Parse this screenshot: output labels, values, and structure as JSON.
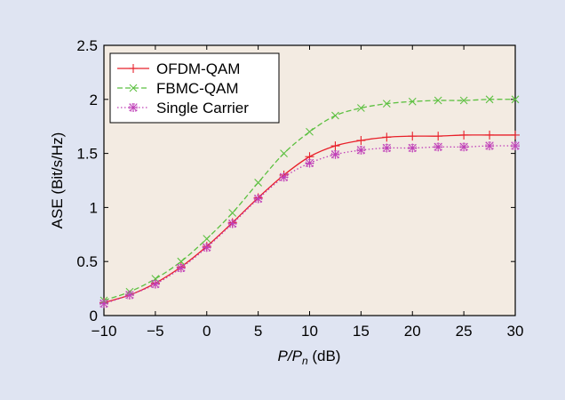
{
  "chart_data": {
    "type": "line",
    "xlabel_italic": "P/P",
    "xlabel_sub": "n",
    "xlabel_unit": " (dB)",
    "ylabel": "ASE (Bit/s/Hz)",
    "xlim": [
      -10,
      30
    ],
    "ylim": [
      0,
      2.5
    ],
    "xticks": [
      -10,
      -5,
      0,
      5,
      10,
      15,
      20,
      25,
      30
    ],
    "xtick_labels": [
      "−10",
      "−5",
      "0",
      "5",
      "10",
      "15",
      "20",
      "25",
      "30"
    ],
    "yticks": [
      0,
      0.5,
      1,
      1.5,
      2,
      2.5
    ],
    "ytick_labels": [
      "0",
      "0.5",
      "1",
      "1.5",
      "2",
      "2.5"
    ],
    "grid": false,
    "legend_position": "top-left",
    "x": [
      -10,
      -7.5,
      -5,
      -2.5,
      0,
      2.5,
      5,
      7.5,
      10,
      12.5,
      15,
      17.5,
      20,
      22.5,
      25,
      27.5,
      30
    ],
    "series": [
      {
        "name": "OFDM-QAM",
        "color": "#e8202a",
        "line": "solid",
        "marker": "plus",
        "values": [
          0.12,
          0.19,
          0.3,
          0.45,
          0.64,
          0.86,
          1.09,
          1.3,
          1.47,
          1.57,
          1.62,
          1.65,
          1.66,
          1.66,
          1.67,
          1.67,
          1.67
        ]
      },
      {
        "name": "FBMC-QAM",
        "color": "#5cc040",
        "line": "dashed",
        "marker": "x",
        "values": [
          0.14,
          0.22,
          0.34,
          0.5,
          0.71,
          0.95,
          1.23,
          1.5,
          1.7,
          1.85,
          1.92,
          1.96,
          1.98,
          1.99,
          1.99,
          2.0,
          2.0
        ]
      },
      {
        "name": "Single Carrier",
        "color": "#c040b8",
        "line": "dotted",
        "marker": "square-star",
        "values": [
          0.11,
          0.19,
          0.29,
          0.44,
          0.63,
          0.85,
          1.08,
          1.28,
          1.41,
          1.49,
          1.53,
          1.55,
          1.55,
          1.56,
          1.56,
          1.57,
          1.57
        ]
      }
    ]
  }
}
